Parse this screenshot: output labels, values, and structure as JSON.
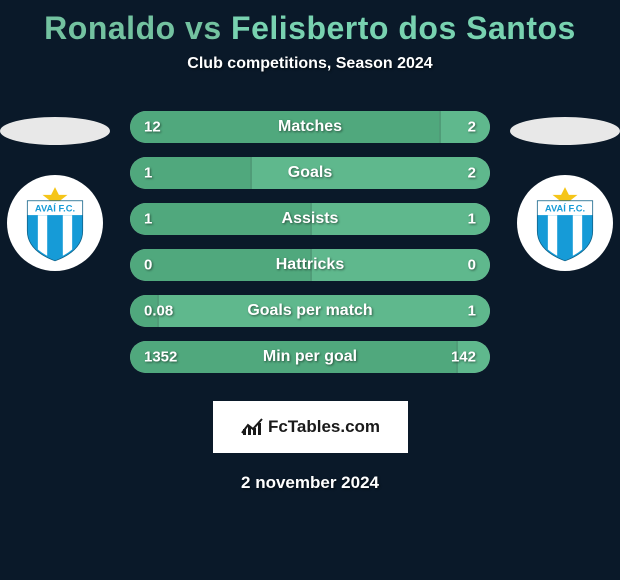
{
  "background_color": "#0a1929",
  "title": {
    "player1": "Ronaldo",
    "vs": " vs ",
    "player2": "Felisberto dos Santos",
    "player1_color": "#73c2a0",
    "player2_color": "#78d2b0",
    "fontsize": 32
  },
  "subtitle": "Club competitions, Season 2024",
  "silhouette_color": "#e8e8e8",
  "club_logo": {
    "shield_fill": "#169bd7",
    "shield_text": "AVAÍ F.C.",
    "star_color": "#f5c518"
  },
  "bars": {
    "track_color": "#7fb89b",
    "fill_left_color": "#50a87d",
    "fill_right_color": "#5fb88d",
    "text_color": "#ffffff",
    "height": 32,
    "radius": 16,
    "rows": [
      {
        "label": "Matches",
        "left": "12",
        "right": "2",
        "left_pct": 85.7,
        "right_pct": 14.3
      },
      {
        "label": "Goals",
        "left": "1",
        "right": "2",
        "left_pct": 33.3,
        "right_pct": 66.7
      },
      {
        "label": "Assists",
        "left": "1",
        "right": "1",
        "left_pct": 50.0,
        "right_pct": 50.0
      },
      {
        "label": "Hattricks",
        "left": "0",
        "right": "0",
        "left_pct": 50.0,
        "right_pct": 50.0
      },
      {
        "label": "Goals per match",
        "left": "0.08",
        "right": "1",
        "left_pct": 7.4,
        "right_pct": 92.6
      },
      {
        "label": "Min per goal",
        "left": "1352",
        "right": "142",
        "left_pct": 90.5,
        "right_pct": 9.5
      }
    ]
  },
  "branding": {
    "text": "FcTables.com",
    "bg": "#ffffff",
    "icon_color": "#1a1a1a"
  },
  "date": "2 november 2024"
}
